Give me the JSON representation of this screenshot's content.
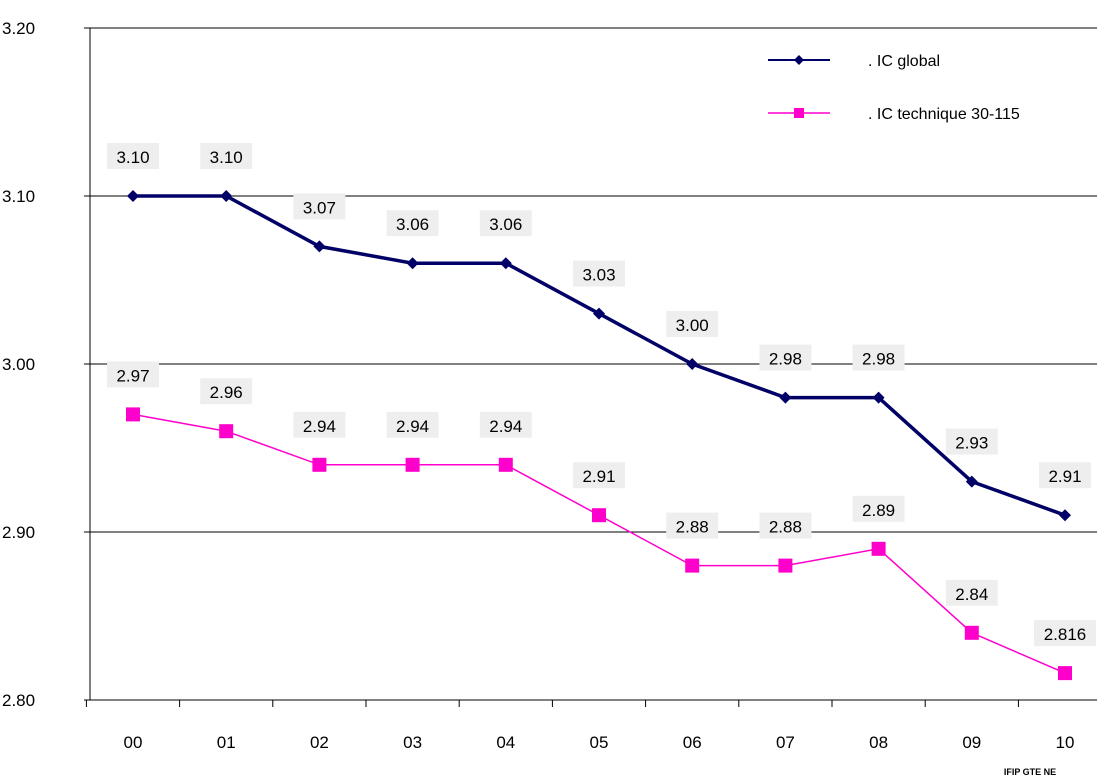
{
  "chart_data": {
    "type": "line",
    "categories": [
      "00",
      "01",
      "02",
      "03",
      "04",
      "05",
      "06",
      "07",
      "08",
      "09",
      "10"
    ],
    "ylim": [
      2.8,
      3.2
    ],
    "yticks": [
      "2.80",
      "2.90",
      "3.00",
      "3.10",
      "3.20"
    ],
    "grid": "horizontal",
    "legend_position": "top-right",
    "series": [
      {
        "name": ". IC global",
        "color": "#000066",
        "marker": "diamond",
        "values": [
          3.1,
          3.1,
          3.07,
          3.06,
          3.06,
          3.03,
          3.0,
          2.98,
          2.98,
          2.93,
          2.91
        ],
        "labels": [
          "3.10",
          "3.10",
          "3.07",
          "3.06",
          "3.06",
          "3.03",
          "3.00",
          "2.98",
          "2.98",
          "2.93",
          "2.91"
        ]
      },
      {
        "name": ". IC technique 30-115",
        "color": "#ff00cc",
        "marker": "square",
        "values": [
          2.97,
          2.96,
          2.94,
          2.94,
          2.94,
          2.91,
          2.88,
          2.88,
          2.89,
          2.84,
          2.816
        ],
        "labels": [
          "2.97",
          "2.96",
          "2.94",
          "2.94",
          "2.94",
          "2.91",
          "2.88",
          "2.88",
          "2.89",
          "2.84",
          "2.816"
        ]
      }
    ],
    "source": "IFIP GTE NE"
  }
}
